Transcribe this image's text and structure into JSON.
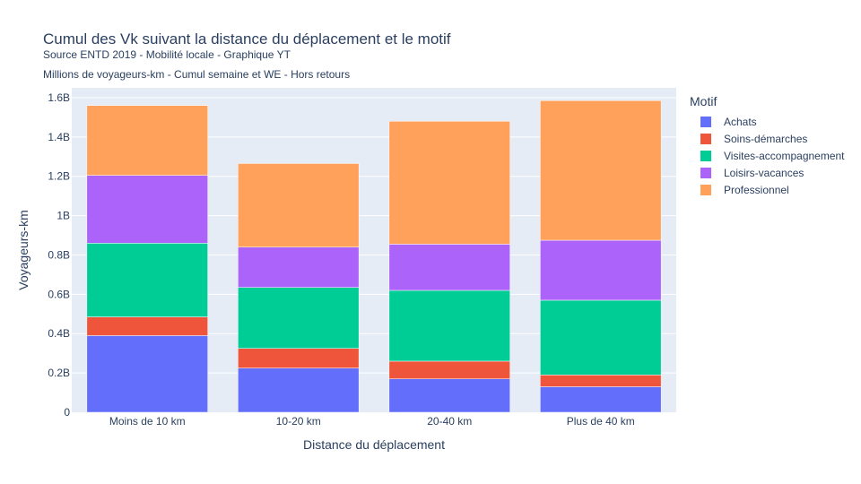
{
  "header": {
    "title": "Cumul des Vk suivant la distance du déplacement et le motif",
    "subtitle": "Source ENTD 2019 - Mobilité locale - Graphique YT",
    "note": "Millions de voyageurs-km - Cumul semaine et WE - Hors retours"
  },
  "legend": {
    "title": "Motif",
    "placement": "right"
  },
  "chart_data": {
    "type": "bar",
    "stacked": true,
    "title": "Cumul des Vk suivant la distance du déplacement et le motif",
    "xlabel": "Distance du déplacement",
    "ylabel": "Voyageurs-km",
    "categories": [
      "Moins de 10 km",
      "10-20 km",
      "20-40 km",
      "Plus de 40 km"
    ],
    "ylim": [
      0,
      1.65
    ],
    "yticks": [
      0,
      0.2,
      0.4,
      0.6,
      0.8,
      1.0,
      1.2,
      1.4,
      1.6
    ],
    "ytick_labels": [
      "0",
      "0.2B",
      "0.4B",
      "0.6B",
      "0.8B",
      "1B",
      "1.2B",
      "1.4B",
      "1.6B"
    ],
    "unit": "B",
    "grid": true,
    "background": "#e5ecf6",
    "series": [
      {
        "name": "Achats",
        "color": "#636efa",
        "values": [
          0.39,
          0.225,
          0.17,
          0.13
        ]
      },
      {
        "name": "Soins-démarches",
        "color": "#ef553b",
        "values": [
          0.095,
          0.1,
          0.09,
          0.06
        ]
      },
      {
        "name": "Visites-accompagnement",
        "color": "#00cc96",
        "values": [
          0.375,
          0.31,
          0.36,
          0.38
        ]
      },
      {
        "name": "Loisirs-vacances",
        "color": "#ab63fa",
        "values": [
          0.345,
          0.205,
          0.235,
          0.305
        ]
      },
      {
        "name": "Professionnel",
        "color": "#ffa15a",
        "values": [
          0.355,
          0.425,
          0.625,
          0.71
        ]
      }
    ]
  }
}
